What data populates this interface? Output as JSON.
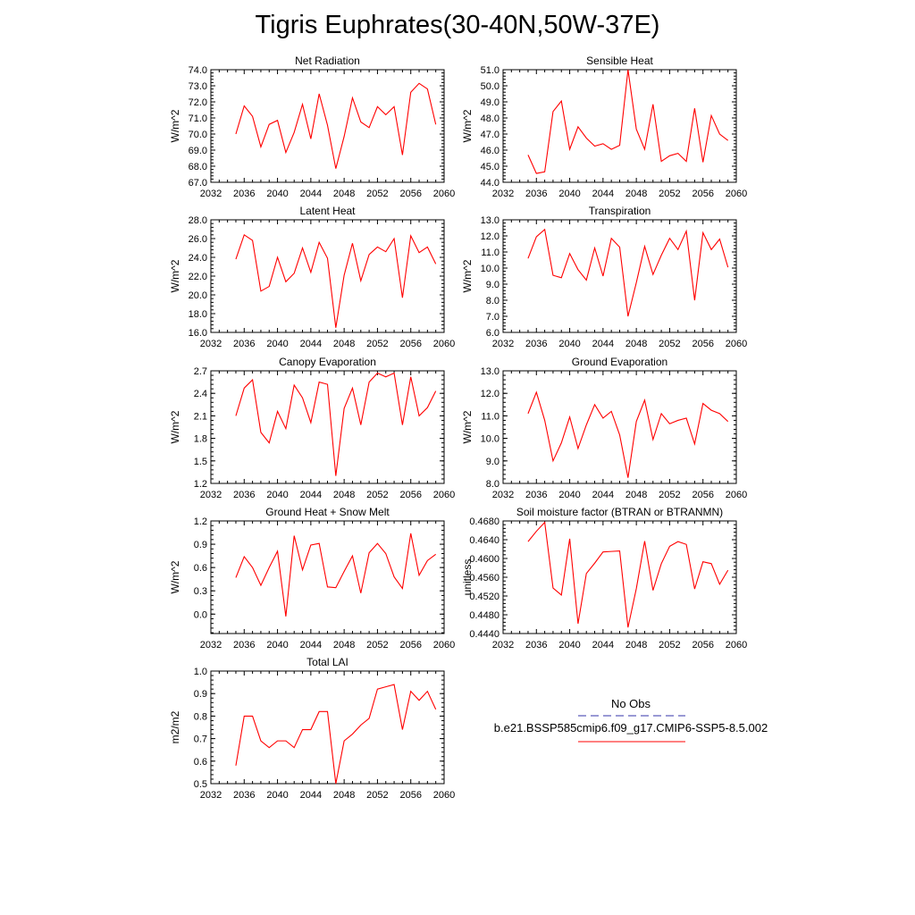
{
  "title": "Tigris Euphrates(30-40N,50W-37E)",
  "colors": {
    "model_line": "#ff0000",
    "obs_line": "#3333aa",
    "axis": "#000000"
  },
  "legend": {
    "obs_label": "No Obs",
    "model_label": "b.e21.BSSP585cmip6.f09_g17.CMIP6-SSP5-8.5.002"
  },
  "chart_data": [
    {
      "type": "line",
      "title": "Net Radiation",
      "ylabel": "W/m^2",
      "xlabel": "",
      "xlim": [
        2032,
        2060
      ],
      "ylim": [
        67.0,
        74.0
      ],
      "xticks": [
        2032,
        2036,
        2040,
        2044,
        2048,
        2052,
        2056,
        2060
      ],
      "yticks": [
        67.0,
        68.0,
        69.0,
        70.0,
        71.0,
        72.0,
        73.0,
        74.0
      ],
      "ydecimals": 1,
      "x": [
        2035,
        2036,
        2037,
        2038,
        2039,
        2040,
        2041,
        2042,
        2043,
        2044,
        2045,
        2046,
        2047,
        2048,
        2049,
        2050,
        2051,
        2052,
        2053,
        2054,
        2055,
        2056,
        2057,
        2058,
        2059
      ],
      "series": [
        {
          "values": [
            70.0,
            71.75,
            71.1,
            69.2,
            70.6,
            70.85,
            68.85,
            70.1,
            71.85,
            69.7,
            72.5,
            70.55,
            67.85,
            69.85,
            72.25,
            70.75,
            70.4,
            71.7,
            71.2,
            71.7,
            68.7,
            72.6,
            73.15,
            72.8,
            70.6
          ]
        }
      ]
    },
    {
      "type": "line",
      "title": "Sensible Heat",
      "ylabel": "W/m^2",
      "xlabel": "",
      "xlim": [
        2032,
        2060
      ],
      "ylim": [
        44.0,
        51.0
      ],
      "xticks": [
        2032,
        2036,
        2040,
        2044,
        2048,
        2052,
        2056,
        2060
      ],
      "yticks": [
        44.0,
        45.0,
        46.0,
        47.0,
        48.0,
        49.0,
        50.0,
        51.0
      ],
      "ydecimals": 1,
      "x": [
        2035,
        2036,
        2037,
        2038,
        2039,
        2040,
        2041,
        2042,
        2043,
        2044,
        2045,
        2046,
        2047,
        2048,
        2049,
        2050,
        2051,
        2052,
        2053,
        2054,
        2055,
        2056,
        2057,
        2058,
        2059
      ],
      "series": [
        {
          "values": [
            45.7,
            44.55,
            44.65,
            48.4,
            49.05,
            46.05,
            47.45,
            46.75,
            46.25,
            46.4,
            46.05,
            46.3,
            51.0,
            47.3,
            46.05,
            48.85,
            45.3,
            45.65,
            45.8,
            45.3,
            48.6,
            45.25,
            48.15,
            47.0,
            46.6
          ]
        }
      ]
    },
    {
      "type": "line",
      "title": "Latent Heat",
      "ylabel": "W/m^2",
      "xlabel": "",
      "xlim": [
        2032,
        2060
      ],
      "ylim": [
        16.0,
        28.0
      ],
      "xticks": [
        2032,
        2036,
        2040,
        2044,
        2048,
        2052,
        2056,
        2060
      ],
      "yticks": [
        16.0,
        18.0,
        20.0,
        22.0,
        24.0,
        26.0,
        28.0
      ],
      "ydecimals": 1,
      "x": [
        2035,
        2036,
        2037,
        2038,
        2039,
        2040,
        2041,
        2042,
        2043,
        2044,
        2045,
        2046,
        2047,
        2048,
        2049,
        2050,
        2051,
        2052,
        2053,
        2054,
        2055,
        2056,
        2057,
        2058,
        2059
      ],
      "series": [
        {
          "values": [
            23.8,
            26.4,
            25.8,
            20.4,
            20.9,
            24.0,
            21.4,
            22.3,
            25.0,
            22.4,
            25.6,
            23.9,
            16.5,
            22.1,
            25.5,
            21.5,
            24.3,
            25.1,
            24.6,
            26.0,
            19.7,
            26.3,
            24.5,
            25.1,
            23.3
          ]
        }
      ]
    },
    {
      "type": "line",
      "title": "Transpiration",
      "ylabel": "W/m^2",
      "xlabel": "",
      "xlim": [
        2032,
        2060
      ],
      "ylim": [
        6.0,
        13.0
      ],
      "xticks": [
        2032,
        2036,
        2040,
        2044,
        2048,
        2052,
        2056,
        2060
      ],
      "yticks": [
        6.0,
        7.0,
        8.0,
        9.0,
        10.0,
        11.0,
        12.0,
        13.0
      ],
      "ydecimals": 1,
      "x": [
        2035,
        2036,
        2037,
        2038,
        2039,
        2040,
        2041,
        2042,
        2043,
        2044,
        2045,
        2046,
        2047,
        2048,
        2049,
        2050,
        2051,
        2052,
        2053,
        2054,
        2055,
        2056,
        2057,
        2058,
        2059
      ],
      "series": [
        {
          "values": [
            10.6,
            11.95,
            12.4,
            9.55,
            9.4,
            10.9,
            9.9,
            9.25,
            11.25,
            9.5,
            11.85,
            11.3,
            7.0,
            9.1,
            11.35,
            9.6,
            10.8,
            11.85,
            11.15,
            12.3,
            8.0,
            12.2,
            11.15,
            11.8,
            10.05
          ]
        }
      ]
    },
    {
      "type": "line",
      "title": "Canopy Evaporation",
      "ylabel": "W/m^2",
      "xlabel": "",
      "xlim": [
        2032,
        2060
      ],
      "ylim": [
        1.2,
        2.7
      ],
      "xticks": [
        2032,
        2036,
        2040,
        2044,
        2048,
        2052,
        2056,
        2060
      ],
      "yticks": [
        1.2,
        1.5,
        1.8,
        2.1,
        2.4,
        2.7
      ],
      "ydecimals": 1,
      "x": [
        2035,
        2036,
        2037,
        2038,
        2039,
        2040,
        2041,
        2042,
        2043,
        2044,
        2045,
        2046,
        2047,
        2048,
        2049,
        2050,
        2051,
        2052,
        2053,
        2054,
        2055,
        2056,
        2057,
        2058,
        2059
      ],
      "series": [
        {
          "values": [
            2.1,
            2.47,
            2.58,
            1.88,
            1.74,
            2.16,
            1.93,
            2.51,
            2.34,
            2.01,
            2.55,
            2.52,
            1.3,
            2.2,
            2.47,
            1.98,
            2.55,
            2.67,
            2.62,
            2.67,
            1.98,
            2.62,
            2.1,
            2.21,
            2.43
          ]
        }
      ]
    },
    {
      "type": "line",
      "title": "Ground Evaporation",
      "ylabel": "W/m^2",
      "xlabel": "",
      "xlim": [
        2032,
        2060
      ],
      "ylim": [
        8.0,
        13.0
      ],
      "xticks": [
        2032,
        2036,
        2040,
        2044,
        2048,
        2052,
        2056,
        2060
      ],
      "yticks": [
        8.0,
        9.0,
        10.0,
        11.0,
        12.0,
        13.0
      ],
      "ydecimals": 1,
      "x": [
        2035,
        2036,
        2037,
        2038,
        2039,
        2040,
        2041,
        2042,
        2043,
        2044,
        2045,
        2046,
        2047,
        2048,
        2049,
        2050,
        2051,
        2052,
        2053,
        2054,
        2055,
        2056,
        2057,
        2058,
        2059
      ],
      "series": [
        {
          "values": [
            11.1,
            12.05,
            10.8,
            9.0,
            9.8,
            10.95,
            9.55,
            10.6,
            11.5,
            10.9,
            11.2,
            10.15,
            8.25,
            10.75,
            11.7,
            9.95,
            11.1,
            10.65,
            10.8,
            10.9,
            9.75,
            11.55,
            11.25,
            11.1,
            10.75
          ]
        }
      ]
    },
    {
      "type": "line",
      "title": "Ground Heat + Snow Melt",
      "ylabel": "W/m^2",
      "xlabel": "",
      "xlim": [
        2032,
        2060
      ],
      "ylim": [
        -0.25,
        1.2
      ],
      "xticks": [
        2032,
        2036,
        2040,
        2044,
        2048,
        2052,
        2056,
        2060
      ],
      "yticks": [
        0.0,
        0.3,
        0.6,
        0.9,
        1.2
      ],
      "ydecimals": 1,
      "x": [
        2035,
        2036,
        2037,
        2038,
        2039,
        2040,
        2041,
        2042,
        2043,
        2044,
        2045,
        2046,
        2047,
        2048,
        2049,
        2050,
        2051,
        2052,
        2053,
        2054,
        2055,
        2056,
        2057,
        2058,
        2059
      ],
      "series": [
        {
          "values": [
            0.47,
            0.74,
            0.6,
            0.37,
            0.6,
            0.81,
            -0.03,
            1.01,
            0.57,
            0.89,
            0.91,
            0.35,
            0.34,
            0.55,
            0.75,
            0.27,
            0.79,
            0.91,
            0.78,
            0.48,
            0.33,
            1.04,
            0.5,
            0.69,
            0.77
          ]
        }
      ]
    },
    {
      "type": "line",
      "title": "Soil moisture factor (BTRAN or BTRANMN)",
      "ylabel": "unitless",
      "xlabel": "",
      "xlim": [
        2032,
        2060
      ],
      "ylim": [
        0.444,
        0.468
      ],
      "xticks": [
        2032,
        2036,
        2040,
        2044,
        2048,
        2052,
        2056,
        2060
      ],
      "yticks": [
        0.444,
        0.448,
        0.452,
        0.456,
        0.46,
        0.464,
        0.468
      ],
      "ydecimals": 4,
      "x": [
        2035,
        2036,
        2037,
        2038,
        2039,
        2040,
        2041,
        2042,
        2043,
        2044,
        2045,
        2046,
        2047,
        2048,
        2049,
        2050,
        2051,
        2052,
        2053,
        2054,
        2055,
        2056,
        2057,
        2058,
        2059
      ],
      "series": [
        {
          "values": [
            0.4636,
            0.4658,
            0.4677,
            0.4537,
            0.4522,
            0.4642,
            0.4461,
            0.4568,
            0.459,
            0.4614,
            0.4615,
            0.4616,
            0.4453,
            0.4536,
            0.4637,
            0.4532,
            0.4589,
            0.4626,
            0.4636,
            0.463,
            0.4535,
            0.4593,
            0.4589,
            0.4545,
            0.4575
          ]
        }
      ]
    },
    {
      "type": "line",
      "title": "Total LAI",
      "ylabel": "m2/m2",
      "xlabel": "",
      "xlim": [
        2032,
        2060
      ],
      "ylim": [
        0.5,
        1.0
      ],
      "xticks": [
        2032,
        2036,
        2040,
        2044,
        2048,
        2052,
        2056,
        2060
      ],
      "yticks": [
        0.5,
        0.6,
        0.7,
        0.8,
        0.9,
        1.0
      ],
      "ydecimals": 1,
      "x": [
        2035,
        2036,
        2037,
        2038,
        2039,
        2040,
        2041,
        2042,
        2043,
        2044,
        2045,
        2046,
        2047,
        2048,
        2049,
        2050,
        2051,
        2052,
        2053,
        2054,
        2055,
        2056,
        2057,
        2058,
        2059
      ],
      "series": [
        {
          "values": [
            0.58,
            0.8,
            0.8,
            0.69,
            0.66,
            0.69,
            0.69,
            0.66,
            0.74,
            0.74,
            0.82,
            0.82,
            0.5,
            0.69,
            0.72,
            0.76,
            0.79,
            0.92,
            0.93,
            0.94,
            0.74,
            0.91,
            0.87,
            0.91,
            0.83
          ]
        }
      ]
    }
  ]
}
